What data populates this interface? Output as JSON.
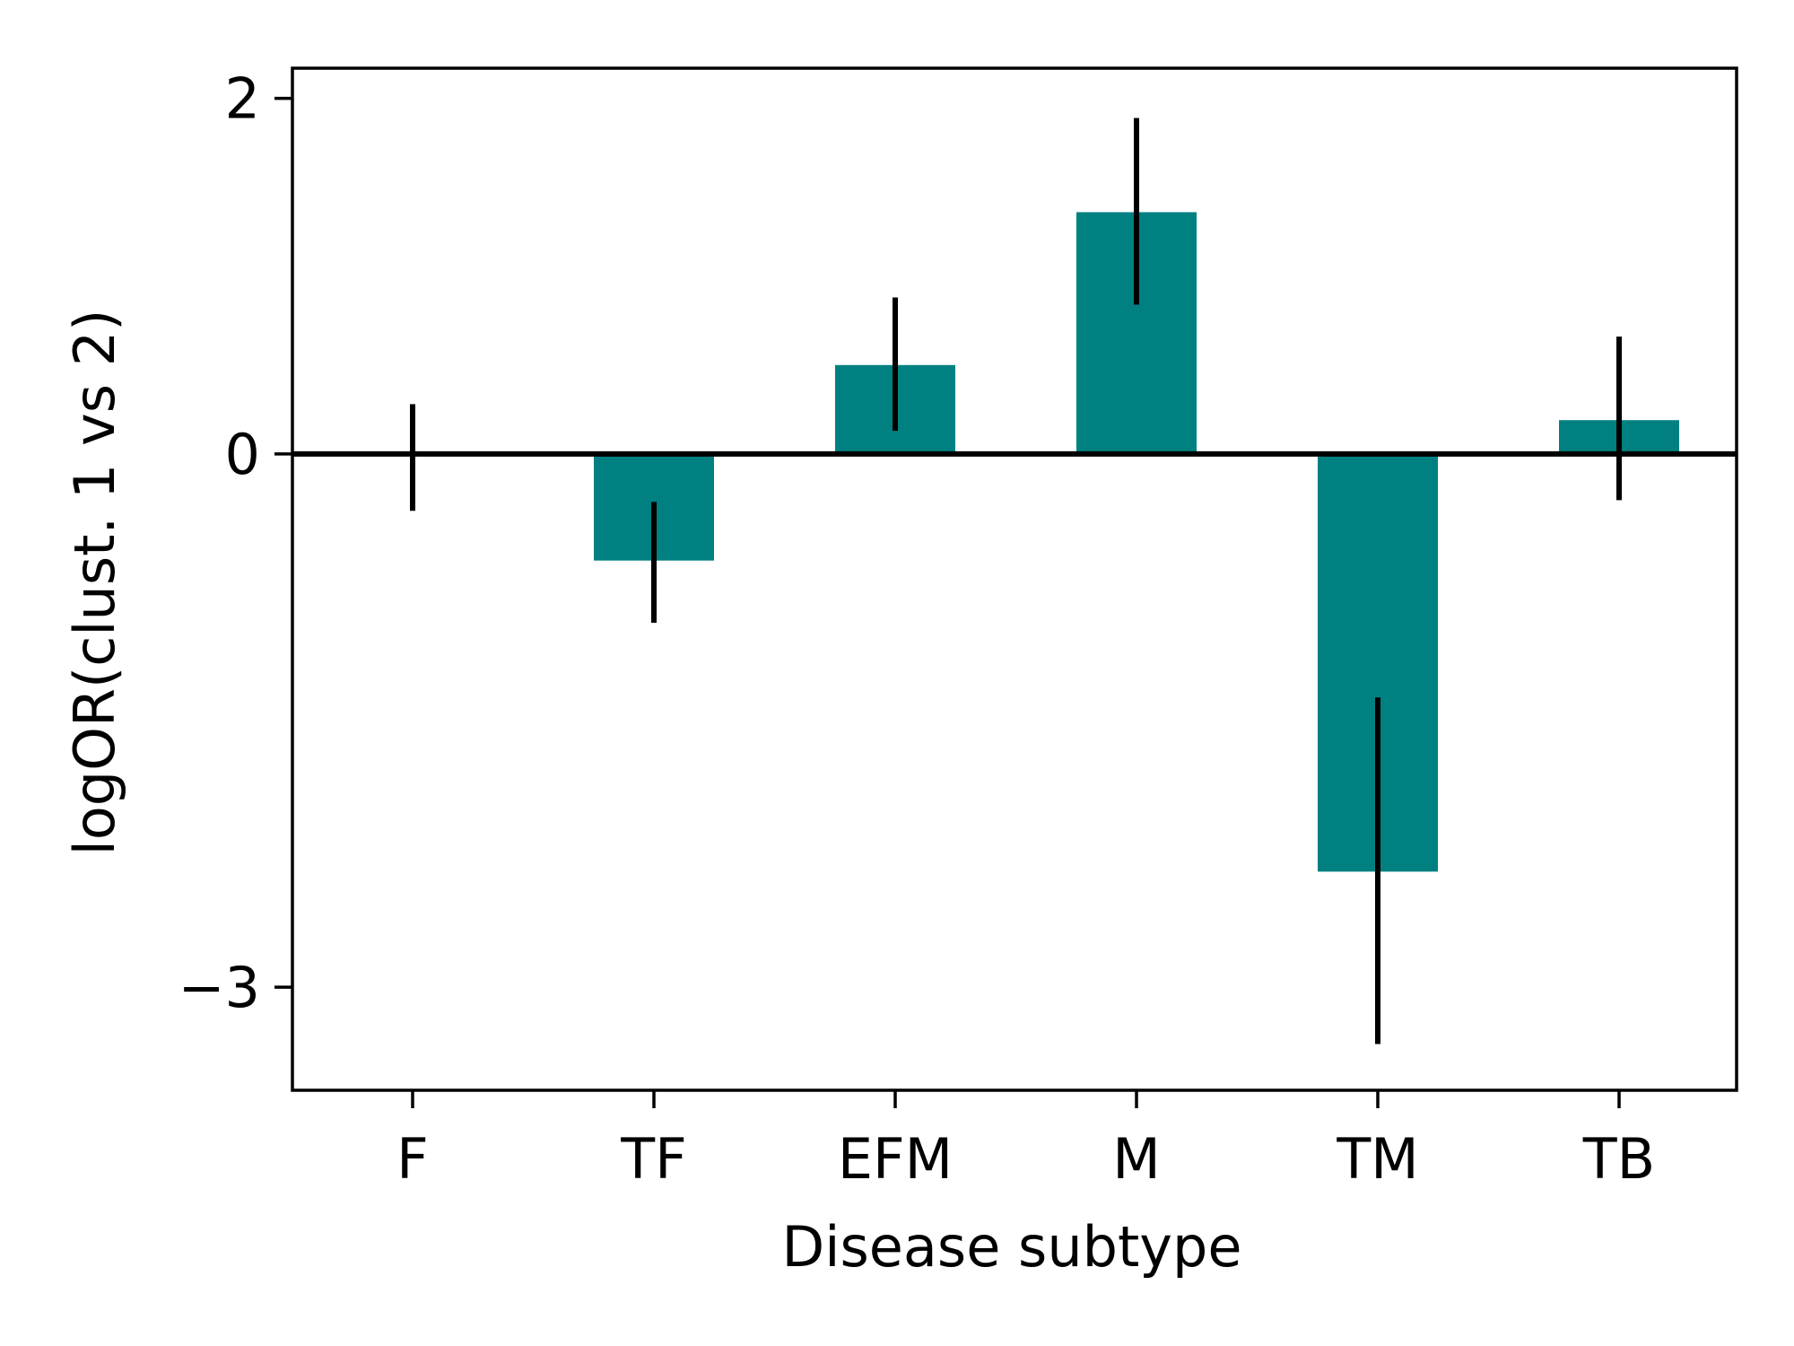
{
  "chart_data": {
    "type": "bar",
    "title": "",
    "xlabel": "Disease subtype",
    "ylabel": "logOR(clust. 1 vs 2)",
    "categories": [
      "F",
      "TF",
      "EFM",
      "M",
      "TM",
      "TB"
    ],
    "values": [
      0.0,
      -0.6,
      0.5,
      1.36,
      -2.35,
      0.19
    ],
    "error_low": [
      -0.32,
      -0.95,
      0.13,
      0.84,
      -3.32,
      -0.26
    ],
    "error_high": [
      0.28,
      -0.27,
      0.88,
      1.89,
      -1.37,
      0.66
    ],
    "ylim": [
      -3.58,
      2.17
    ],
    "yticks": [
      2,
      0,
      -3
    ],
    "ytick_labels": [
      "2",
      "0",
      "−3"
    ],
    "zero_line": true,
    "grid": false,
    "bar_color": "#008080",
    "error_color": "#000000"
  }
}
